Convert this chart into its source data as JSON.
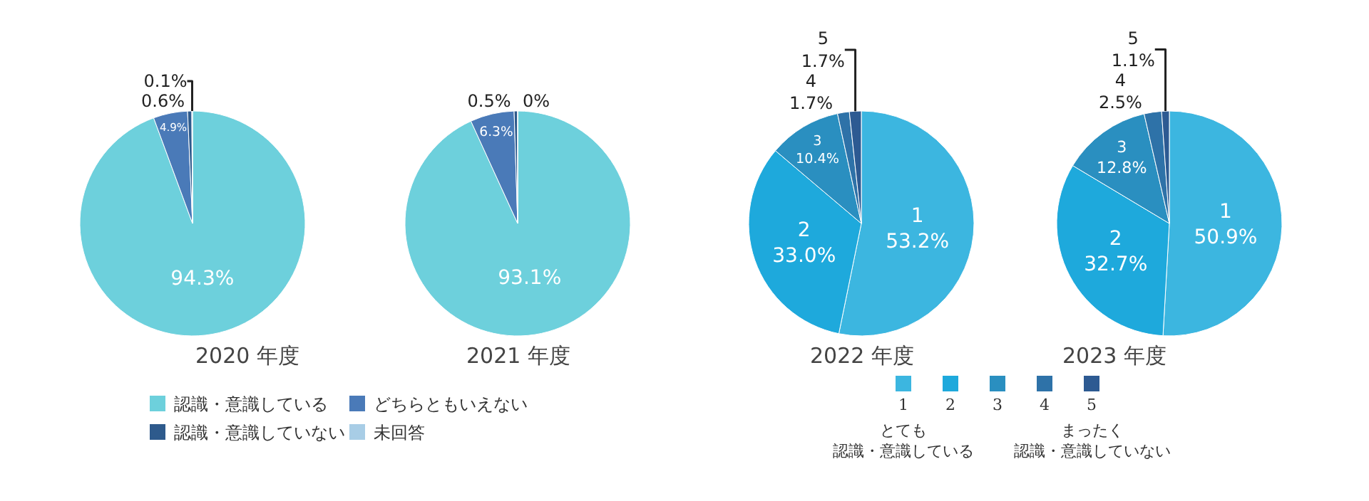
{
  "chart_data": [
    {
      "type": "pie",
      "title": "2020 年度",
      "categories": [
        "認識・意識している",
        "どちらともいえない",
        "認識・意識していない",
        "未回答"
      ],
      "values": [
        94.3,
        4.9,
        0.6,
        0.1
      ],
      "value_labels": [
        "94.3%",
        "4.9%",
        "0.6%",
        "0.1%"
      ],
      "colors": [
        "#6dd0dc",
        "#4a7ab8",
        "#2e5a8c",
        "#a8cde6"
      ],
      "legend": "bottom"
    },
    {
      "type": "pie",
      "title": "2021 年度",
      "categories": [
        null,
        null,
        null,
        null
      ],
      "values": [
        93.1,
        6.3,
        0.5,
        0
      ],
      "value_labels": [
        "93.1%",
        "6.3%",
        "0.5%",
        "0%"
      ],
      "colors": [
        "#6dd0dc",
        "#4a7ab8",
        "#2e5a8c",
        "#a8cde6"
      ]
    },
    {
      "type": "pie",
      "title": "2022 年度",
      "categories": [
        "1",
        "2",
        "3",
        "4",
        "5"
      ],
      "values": [
        53.2,
        33.0,
        10.4,
        1.7,
        1.7
      ],
      "value_labels": [
        "1\n53.2%",
        "2\n33.0%",
        "3\n10.4%",
        "4\n1.7%",
        "5\n1.7%"
      ],
      "colors": [
        "#3cb6e0",
        "#1ea9dc",
        "#2a8fc0",
        "#2e72a8",
        "#2d5a92"
      ],
      "legend": "bottom",
      "annotations": [
        "とても認識・意識している",
        "まったく認識・意識していない"
      ]
    },
    {
      "type": "pie",
      "title": "2023 年度",
      "categories": [
        null,
        null,
        null,
        null,
        null
      ],
      "values": [
        50.9,
        32.7,
        12.8,
        2.5,
        1.1
      ],
      "value_labels": [
        "1\n50.9%",
        "2\n32.7%",
        "3\n12.8%",
        "4\n2.5%",
        "5\n1.1%"
      ],
      "colors": [
        "#3cb6e0",
        "#1ea9dc",
        "#2a8fc0",
        "#2e72a8",
        "#2d5a92"
      ]
    }
  ]
}
